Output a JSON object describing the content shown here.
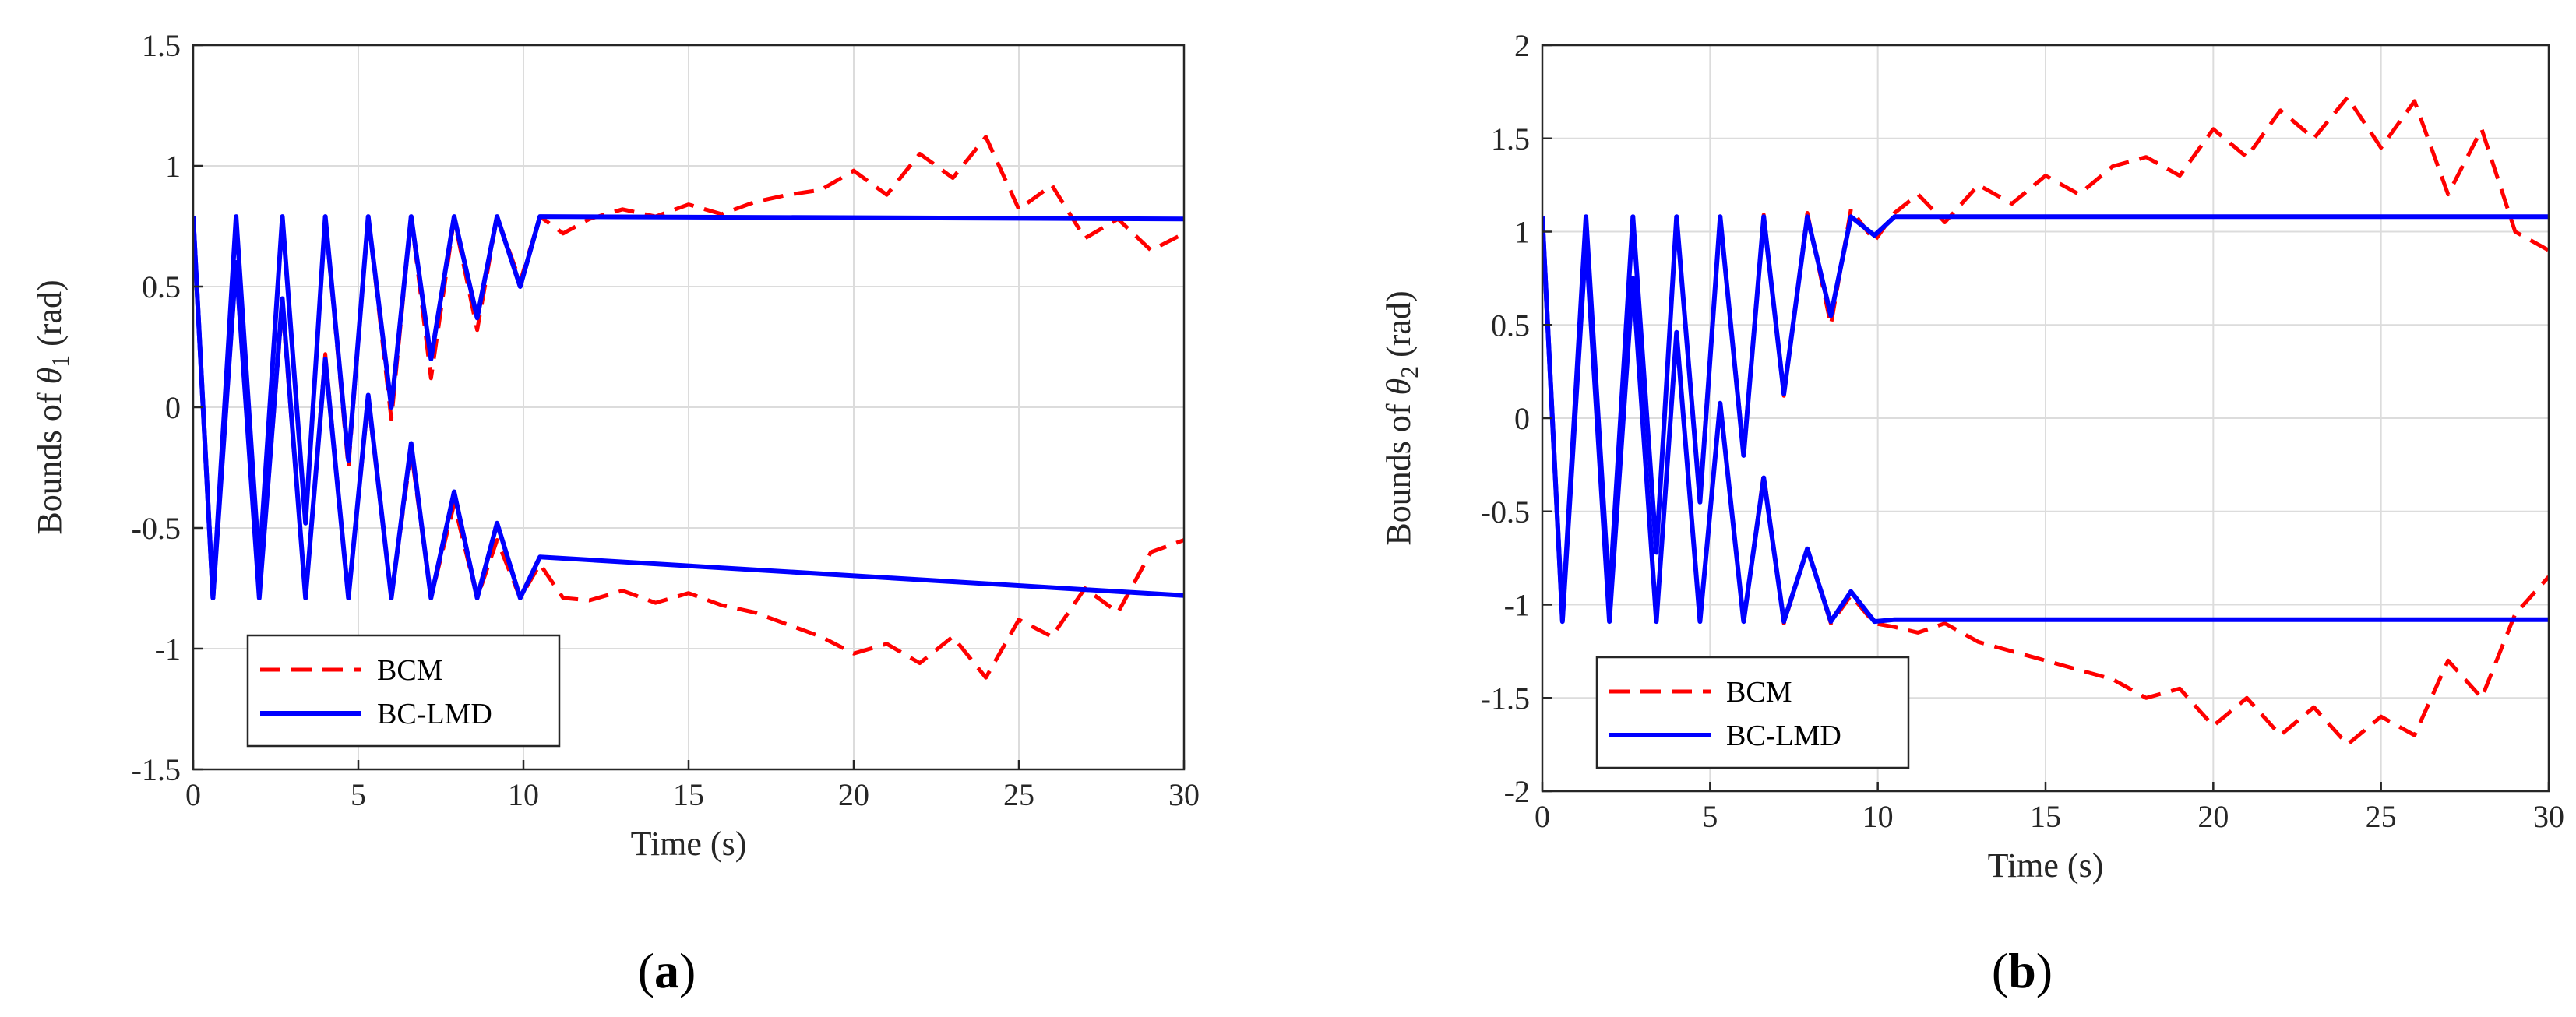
{
  "chart_data": [
    {
      "type": "line",
      "panel_label": "a",
      "xlabel": "Time (s)",
      "ylabel": {
        "prefix": "Bounds of ",
        "symbol": "θ",
        "subscript": "1",
        "suffix": " (rad)"
      },
      "xlim": [
        0,
        30
      ],
      "ylim": [
        -1.5,
        1.5
      ],
      "xticks": [
        0,
        5,
        10,
        15,
        20,
        25,
        30
      ],
      "yticks": [
        -1.5,
        -1,
        -0.5,
        0,
        0.5,
        1,
        1.5
      ],
      "grid": true,
      "legend": {
        "position": "bottom-left",
        "entries": [
          "BCM",
          "BC-LMD"
        ]
      },
      "series": [
        {
          "name": "BCM",
          "color": "#ff0000",
          "style": "dashed",
          "description": "upper and lower bounds; converge in first ~10 s then oscillate with growing noise",
          "upper": {
            "x": [
              0,
              0.6,
              1.3,
              2.0,
              2.7,
              3.4,
              4.0,
              4.7,
              5.3,
              6.0,
              6.6,
              7.2,
              7.9,
              8.6,
              9.2,
              9.9,
              10.5,
              11.2,
              12,
              13,
              14,
              15,
              16,
              17,
              18,
              19,
              20,
              21,
              22,
              23,
              24,
              25,
              26,
              27,
              28,
              29,
              30
            ],
            "y": [
              0.79,
              -0.78,
              0.78,
              -0.65,
              0.78,
              -0.47,
              0.78,
              -0.25,
              0.79,
              -0.05,
              0.79,
              0.12,
              0.78,
              0.32,
              0.79,
              0.52,
              0.79,
              0.72,
              0.78,
              0.82,
              0.79,
              0.84,
              0.8,
              0.85,
              0.88,
              0.9,
              0.98,
              0.88,
              1.05,
              0.95,
              1.12,
              0.82,
              0.92,
              0.7,
              0.78,
              0.65,
              0.72
            ]
          },
          "lower": {
            "x": [
              0,
              0.6,
              1.3,
              2.0,
              2.7,
              3.4,
              4.0,
              4.7,
              5.3,
              6.0,
              6.6,
              7.2,
              7.9,
              8.6,
              9.2,
              9.9,
              10.5,
              11.2,
              12,
              13,
              14,
              15,
              16,
              17,
              18,
              19,
              20,
              21,
              22,
              23,
              24,
              25,
              26,
              27,
              28,
              29,
              30
            ],
            "y": [
              0.79,
              -0.79,
              0.58,
              -0.79,
              0.42,
              -0.79,
              0.22,
              -0.79,
              0.03,
              -0.79,
              -0.18,
              -0.79,
              -0.4,
              -0.79,
              -0.55,
              -0.79,
              -0.65,
              -0.79,
              -0.8,
              -0.76,
              -0.81,
              -0.77,
              -0.82,
              -0.85,
              -0.9,
              -0.95,
              -1.02,
              -0.98,
              -1.06,
              -0.95,
              -1.12,
              -0.88,
              -0.95,
              -0.75,
              -0.85,
              -0.6,
              -0.55
            ]
          }
        },
        {
          "name": "BC-LMD",
          "color": "#0000ff",
          "style": "solid",
          "upper": {
            "x": [
              0,
              0.6,
              1.3,
              2.0,
              2.7,
              3.4,
              4.0,
              4.7,
              5.3,
              6.0,
              6.6,
              7.2,
              7.9,
              8.6,
              9.2,
              9.9,
              10.5,
              30
            ],
            "y": [
              0.79,
              -0.79,
              0.79,
              -0.66,
              0.79,
              -0.48,
              0.79,
              -0.22,
              0.79,
              0.0,
              0.79,
              0.2,
              0.79,
              0.37,
              0.79,
              0.5,
              0.79,
              0.78
            ]
          },
          "lower": {
            "x": [
              0,
              0.6,
              1.3,
              2.0,
              2.7,
              3.4,
              4.0,
              4.7,
              5.3,
              6.0,
              6.6,
              7.2,
              7.9,
              8.6,
              9.2,
              9.9,
              10.5,
              30
            ],
            "y": [
              0.79,
              -0.79,
              0.6,
              -0.79,
              0.45,
              -0.79,
              0.2,
              -0.79,
              0.05,
              -0.79,
              -0.15,
              -0.79,
              -0.35,
              -0.79,
              -0.48,
              -0.79,
              -0.62,
              -0.78
            ]
          }
        }
      ]
    },
    {
      "type": "line",
      "panel_label": "b",
      "xlabel": "Time (s)",
      "ylabel": {
        "prefix": "Bounds of ",
        "symbol": "θ",
        "subscript": "2",
        "suffix": " (rad)"
      },
      "xlim": [
        0,
        30
      ],
      "ylim": [
        -2,
        2
      ],
      "xticks": [
        0,
        5,
        10,
        15,
        20,
        25,
        30
      ],
      "yticks": [
        -2,
        -1.5,
        -1,
        -0.5,
        0,
        0.5,
        1,
        1.5,
        2
      ],
      "grid": true,
      "legend": {
        "position": "bottom-left",
        "entries": [
          "BCM",
          "BC-LMD"
        ]
      },
      "series": [
        {
          "name": "BCM",
          "color": "#ff0000",
          "style": "dashed",
          "upper": {
            "x": [
              0,
              0.6,
              1.3,
              2.0,
              2.7,
              3.4,
              4.0,
              4.7,
              5.3,
              6.0,
              6.6,
              7.2,
              7.9,
              8.6,
              9.2,
              9.9,
              10.5,
              11.2,
              12,
              13,
              14,
              15,
              16,
              17,
              18,
              19,
              20,
              21,
              22,
              23,
              24,
              25,
              26,
              27,
              28,
              29,
              30
            ],
            "y": [
              1.07,
              -1.08,
              1.07,
              -0.95,
              1.07,
              -0.7,
              1.07,
              -0.42,
              1.08,
              -0.18,
              1.09,
              0.12,
              1.1,
              0.5,
              1.12,
              0.95,
              1.1,
              1.2,
              1.05,
              1.25,
              1.15,
              1.3,
              1.2,
              1.35,
              1.4,
              1.3,
              1.55,
              1.4,
              1.65,
              1.5,
              1.72,
              1.45,
              1.7,
              1.2,
              1.55,
              1.0,
              0.9
            ]
          },
          "lower": {
            "x": [
              0,
              0.6,
              1.3,
              2.0,
              2.7,
              3.4,
              4.0,
              4.7,
              5.3,
              6.0,
              6.6,
              7.2,
              7.9,
              8.6,
              9.2,
              9.9,
              10.5,
              11.2,
              12,
              13,
              14,
              15,
              16,
              17,
              18,
              19,
              20,
              21,
              22,
              23,
              24,
              25,
              26,
              27,
              28,
              29,
              30
            ],
            "y": [
              1.07,
              -1.08,
              0.95,
              -1.09,
              0.75,
              -1.09,
              0.45,
              -1.09,
              0.08,
              -1.09,
              -0.3,
              -1.1,
              -0.7,
              -1.1,
              -0.95,
              -1.1,
              -1.12,
              -1.15,
              -1.1,
              -1.2,
              -1.25,
              -1.3,
              -1.35,
              -1.4,
              -1.5,
              -1.45,
              -1.65,
              -1.5,
              -1.7,
              -1.55,
              -1.75,
              -1.6,
              -1.7,
              -1.3,
              -1.5,
              -1.05,
              -0.85
            ]
          }
        },
        {
          "name": "BC-LMD",
          "color": "#0000ff",
          "style": "solid",
          "upper": {
            "x": [
              0,
              0.6,
              1.3,
              2.0,
              2.7,
              3.4,
              4.0,
              4.7,
              5.3,
              6.0,
              6.6,
              7.2,
              7.9,
              8.6,
              9.2,
              9.9,
              10.5,
              30
            ],
            "y": [
              1.08,
              -1.08,
              1.08,
              -0.97,
              1.08,
              -0.72,
              1.08,
              -0.45,
              1.08,
              -0.2,
              1.08,
              0.13,
              1.08,
              0.55,
              1.08,
              0.98,
              1.08,
              1.08
            ]
          },
          "lower": {
            "x": [
              0,
              0.6,
              1.3,
              2.0,
              2.7,
              3.4,
              4.0,
              4.7,
              5.3,
              6.0,
              6.6,
              7.2,
              7.9,
              8.6,
              9.2,
              9.9,
              10.5,
              30
            ],
            "y": [
              1.08,
              -1.09,
              0.95,
              -1.09,
              0.75,
              -1.09,
              0.46,
              -1.09,
              0.08,
              -1.09,
              -0.32,
              -1.09,
              -0.7,
              -1.09,
              -0.93,
              -1.09,
              -1.08,
              -1.08
            ]
          }
        }
      ]
    }
  ]
}
